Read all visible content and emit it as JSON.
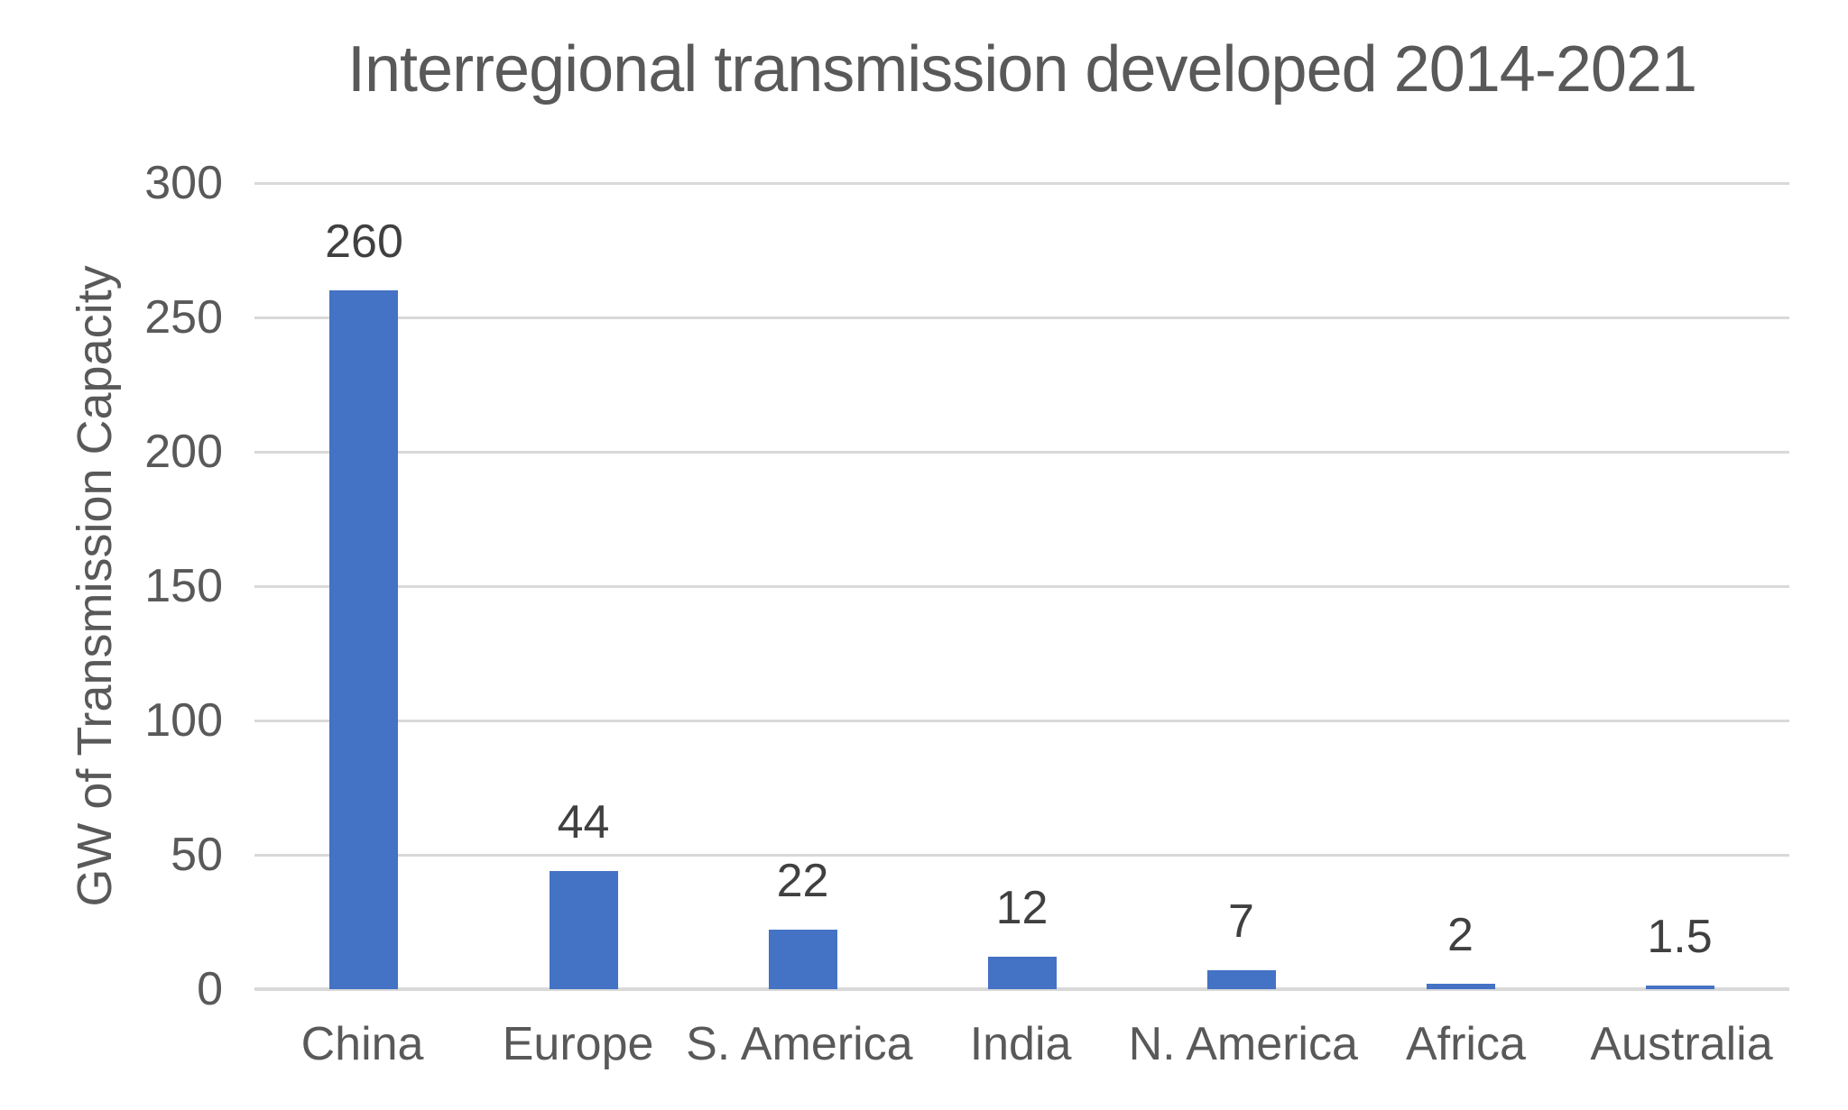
{
  "title": "Interregional transmission developed 2014-2021",
  "chart_data": {
    "type": "bar",
    "title": "Interregional transmission developed 2014-2021",
    "categories": [
      "China",
      "Europe",
      "S. America",
      "India",
      "N. America",
      "Africa",
      "Australia"
    ],
    "values": [
      260,
      44,
      22,
      12,
      7,
      2,
      1.5
    ],
    "data_labels": [
      "260",
      "44",
      "22",
      "12",
      "7",
      "2",
      "1.5"
    ],
    "xlabel": "",
    "ylabel": "GW of Transmission Capacity",
    "ylim": [
      0,
      300
    ],
    "yticks": [
      0,
      50,
      100,
      150,
      200,
      250,
      300
    ],
    "grid": true,
    "legend": false,
    "colors": {
      "bar": "#4472C4",
      "gridline": "#D9D9D9",
      "axis_text": "#595959",
      "data_label_text": "#404040",
      "background": "#FFFFFF"
    }
  }
}
